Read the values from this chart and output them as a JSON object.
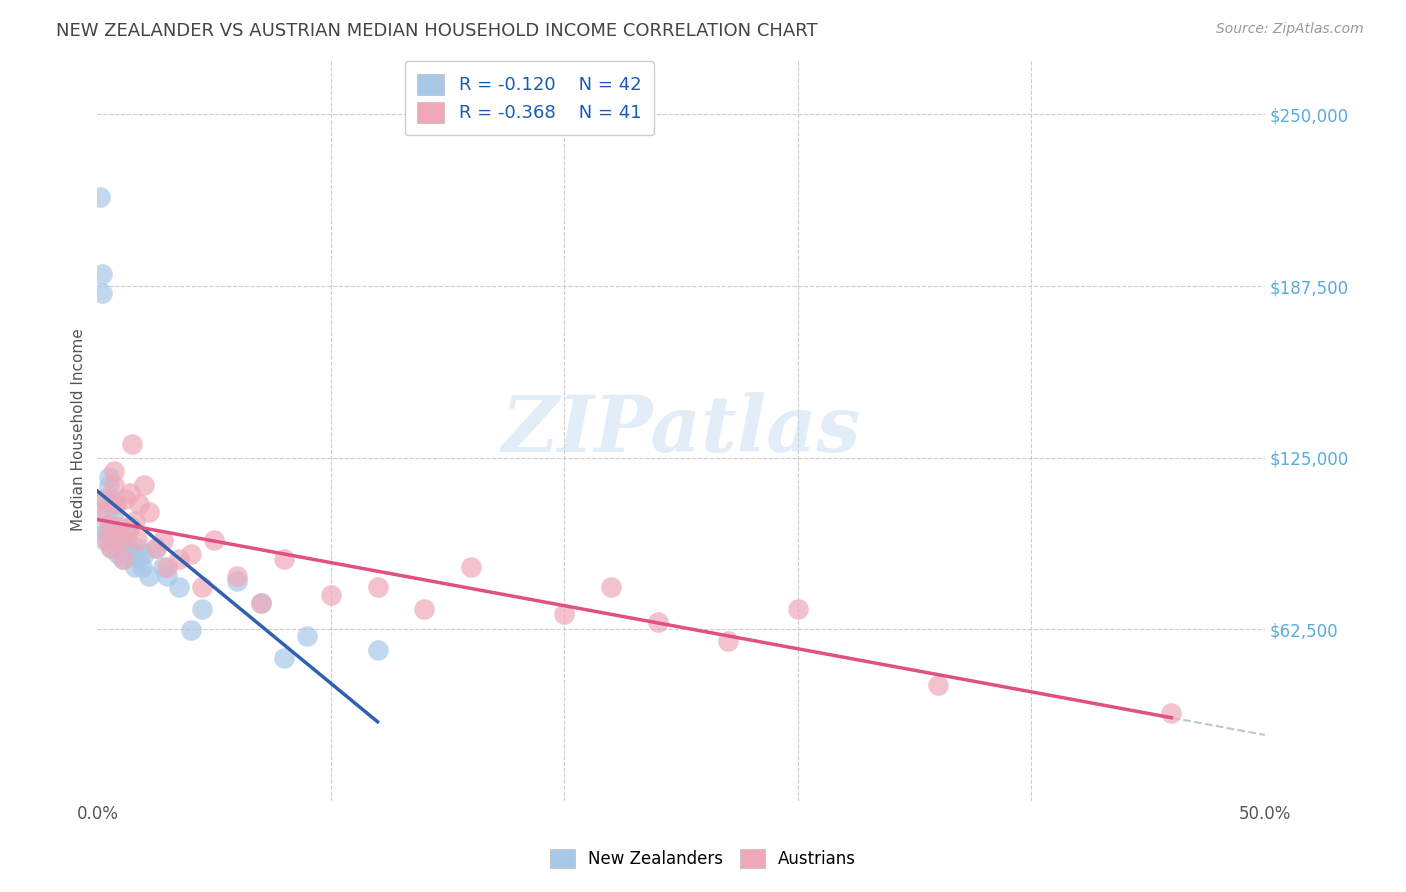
{
  "title": "NEW ZEALANDER VS AUSTRIAN MEDIAN HOUSEHOLD INCOME CORRELATION CHART",
  "source": "Source: ZipAtlas.com",
  "ylabel": "Median Household Income",
  "xlim": [
    0.0,
    0.5
  ],
  "ylim": [
    0,
    270000
  ],
  "yticks": [
    62500,
    125000,
    187500,
    250000
  ],
  "ytick_labels": [
    "$62,500",
    "$125,000",
    "$187,500",
    "$250,000"
  ],
  "xticks": [
    0.0,
    0.1,
    0.2,
    0.3,
    0.4,
    0.5
  ],
  "xtick_labels": [
    "0.0%",
    "",
    "",
    "",
    "",
    "50.0%"
  ],
  "legend_r_nz": "R = -0.120",
  "legend_n_nz": "N = 42",
  "legend_r_au": "R = -0.368",
  "legend_n_au": "N = 41",
  "nz_color": "#a8c8e8",
  "au_color": "#f0a8b8",
  "nz_line_color": "#3060b0",
  "au_line_color": "#e05080",
  "dashed_line_color": "#b8c8d8",
  "background_color": "#ffffff",
  "grid_color": "#cccccc",
  "nz_x": [
    0.001,
    0.002,
    0.002,
    0.003,
    0.003,
    0.003,
    0.004,
    0.004,
    0.005,
    0.005,
    0.006,
    0.006,
    0.006,
    0.007,
    0.007,
    0.008,
    0.008,
    0.009,
    0.009,
    0.01,
    0.011,
    0.012,
    0.013,
    0.014,
    0.015,
    0.016,
    0.017,
    0.018,
    0.019,
    0.02,
    0.022,
    0.025,
    0.028,
    0.03,
    0.035,
    0.04,
    0.045,
    0.06,
    0.07,
    0.08,
    0.09,
    0.12
  ],
  "nz_y": [
    220000,
    192000,
    185000,
    100000,
    95000,
    110000,
    105000,
    98000,
    115000,
    118000,
    110000,
    100000,
    92000,
    105000,
    98000,
    108000,
    92000,
    98000,
    90000,
    95000,
    88000,
    95000,
    92000,
    100000,
    90000,
    85000,
    92000,
    88000,
    85000,
    90000,
    82000,
    92000,
    85000,
    82000,
    78000,
    62000,
    70000,
    80000,
    72000,
    52000,
    60000,
    55000
  ],
  "au_x": [
    0.002,
    0.003,
    0.004,
    0.005,
    0.006,
    0.007,
    0.007,
    0.008,
    0.009,
    0.01,
    0.011,
    0.012,
    0.013,
    0.014,
    0.015,
    0.016,
    0.017,
    0.018,
    0.02,
    0.022,
    0.025,
    0.028,
    0.03,
    0.035,
    0.04,
    0.045,
    0.05,
    0.06,
    0.07,
    0.08,
    0.1,
    0.12,
    0.14,
    0.16,
    0.2,
    0.22,
    0.24,
    0.27,
    0.3,
    0.36,
    0.46
  ],
  "au_y": [
    105000,
    110000,
    95000,
    100000,
    92000,
    115000,
    120000,
    108000,
    100000,
    95000,
    88000,
    110000,
    98000,
    112000,
    130000,
    102000,
    95000,
    108000,
    115000,
    105000,
    92000,
    95000,
    85000,
    88000,
    90000,
    78000,
    95000,
    82000,
    72000,
    88000,
    75000,
    78000,
    70000,
    85000,
    68000,
    78000,
    65000,
    58000,
    70000,
    42000,
    32000
  ]
}
